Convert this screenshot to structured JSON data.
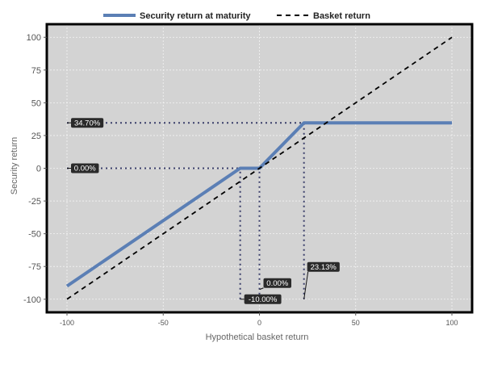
{
  "chart_data": {
    "type": "line",
    "xlabel": "Hypothetical basket return",
    "ylabel": "Security return",
    "xlim": [
      -100,
      100
    ],
    "ylim": [
      -110,
      110
    ],
    "x_ticks": [
      -100,
      -50,
      0,
      50,
      100
    ],
    "y_ticks": [
      100,
      75,
      50,
      25,
      0,
      -25,
      -50,
      -75,
      -100
    ],
    "grid": true,
    "legend_position": "top",
    "series": [
      {
        "name": "Security return at maturity",
        "style": "solid",
        "color": "#5b7fb5",
        "x": [
          -100,
          -10,
          0,
          23.13,
          100
        ],
        "y": [
          -90,
          0,
          0,
          34.7,
          34.7
        ]
      },
      {
        "name": "Basket return",
        "style": "dashed",
        "color": "#000000",
        "x": [
          -100,
          100
        ],
        "y": [
          -100,
          100
        ]
      }
    ],
    "annotations": [
      {
        "label": "34.70%",
        "x": -100,
        "y": 34.7,
        "guide": "horizontal",
        "to_x": 23.13
      },
      {
        "label": "0.00%",
        "x": -100,
        "y": 0,
        "guide": "horizontal",
        "to_x": 0
      },
      {
        "label": "-10.00%",
        "x": -10,
        "y": -100,
        "guide": "vertical",
        "to_y": 0
      },
      {
        "label": "0.00%",
        "x": 0,
        "y": -100,
        "guide": "vertical",
        "to_y": 0
      },
      {
        "label": "23.13%",
        "x": 23.13,
        "y": -100,
        "guide": "vertical",
        "to_y": 34.7
      }
    ]
  }
}
